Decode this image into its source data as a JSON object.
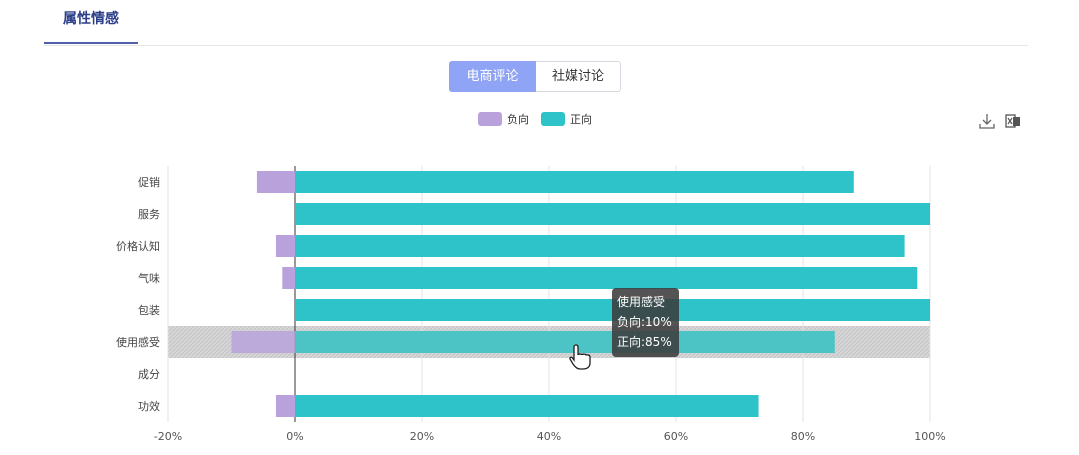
{
  "header": {
    "title": "属性情感"
  },
  "segment": {
    "options": [
      "电商评论",
      "社媒讨论"
    ],
    "selected": "电商评论"
  },
  "toolbar": {
    "download_icon": "download-icon",
    "excel_icon": "excel-export-icon"
  },
  "colors": {
    "negative": "#b9a2dc",
    "positive": "#2ec3c8",
    "accent": "#8fa4f4",
    "highlight": "#d9d9d9"
  },
  "chart_data": {
    "type": "bar",
    "orientation": "horizontal",
    "stacked": true,
    "categories": [
      "促销",
      "服务",
      "价格认知",
      "气味",
      "包装",
      "使用感受",
      "成分",
      "功效"
    ],
    "series": [
      {
        "name": "负向",
        "values": [
          -6,
          0,
          -3,
          -2,
          0,
          -10,
          0,
          -3
        ]
      },
      {
        "name": "正向",
        "values": [
          88,
          100,
          96,
          98,
          100,
          85,
          0,
          73
        ]
      }
    ],
    "xlim": [
      -20,
      100
    ],
    "xticks": [
      "-20%",
      "0%",
      "20%",
      "40%",
      "60%",
      "80%",
      "100%"
    ],
    "legend_position": "top-center",
    "grid": "vertical",
    "highlighted_category": "使用感受",
    "tooltip": {
      "title": "使用感受",
      "lines": [
        "负向:10%",
        "正向:85%"
      ]
    }
  }
}
